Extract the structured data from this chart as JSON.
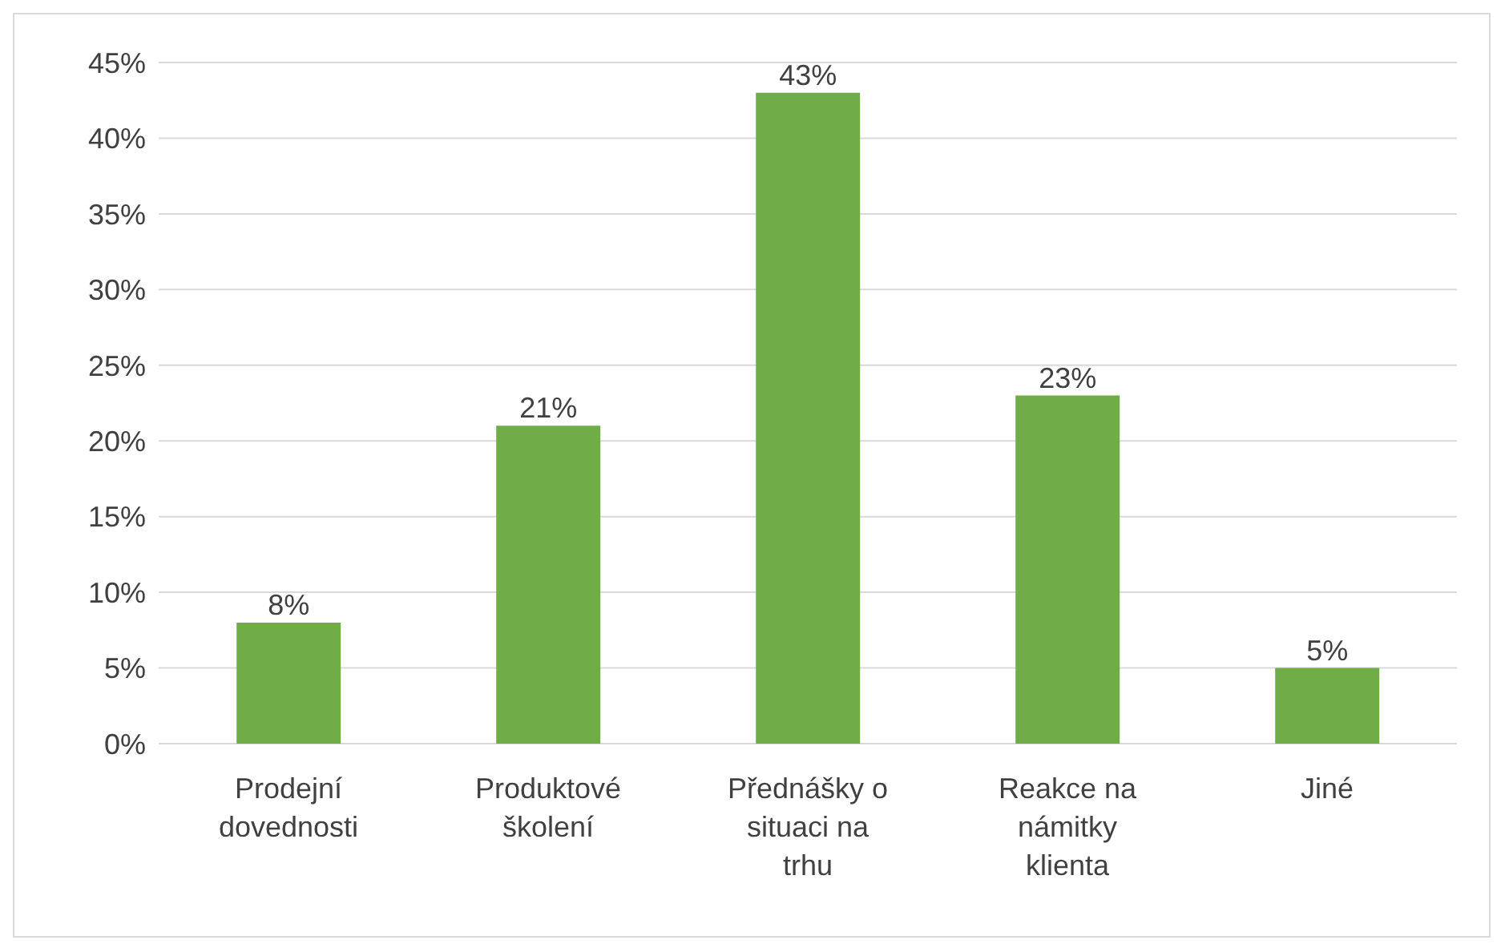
{
  "chart_data": {
    "type": "bar",
    "categories": [
      "Prodejní dovednosti",
      "Produktové školení",
      "Přednášky o situaci na trhu",
      "Reakce na námitky klienta",
      "Jiné"
    ],
    "values": [
      8,
      21,
      43,
      23,
      5
    ],
    "value_labels": [
      "8%",
      "21%",
      "43%",
      "23%",
      "5%"
    ],
    "color": "#70ad47",
    "ylim": [
      0,
      45
    ],
    "yticks": [
      {
        "value": 0,
        "label": "0%"
      },
      {
        "value": 5,
        "label": "5%"
      },
      {
        "value": 10,
        "label": "10%"
      },
      {
        "value": 15,
        "label": "15%"
      },
      {
        "value": 20,
        "label": "20%"
      },
      {
        "value": 25,
        "label": "25%"
      },
      {
        "value": 30,
        "label": "30%"
      },
      {
        "value": 35,
        "label": "35%"
      },
      {
        "value": 40,
        "label": "40%"
      },
      {
        "value": 45,
        "label": "45%"
      }
    ],
    "grid": "y"
  }
}
